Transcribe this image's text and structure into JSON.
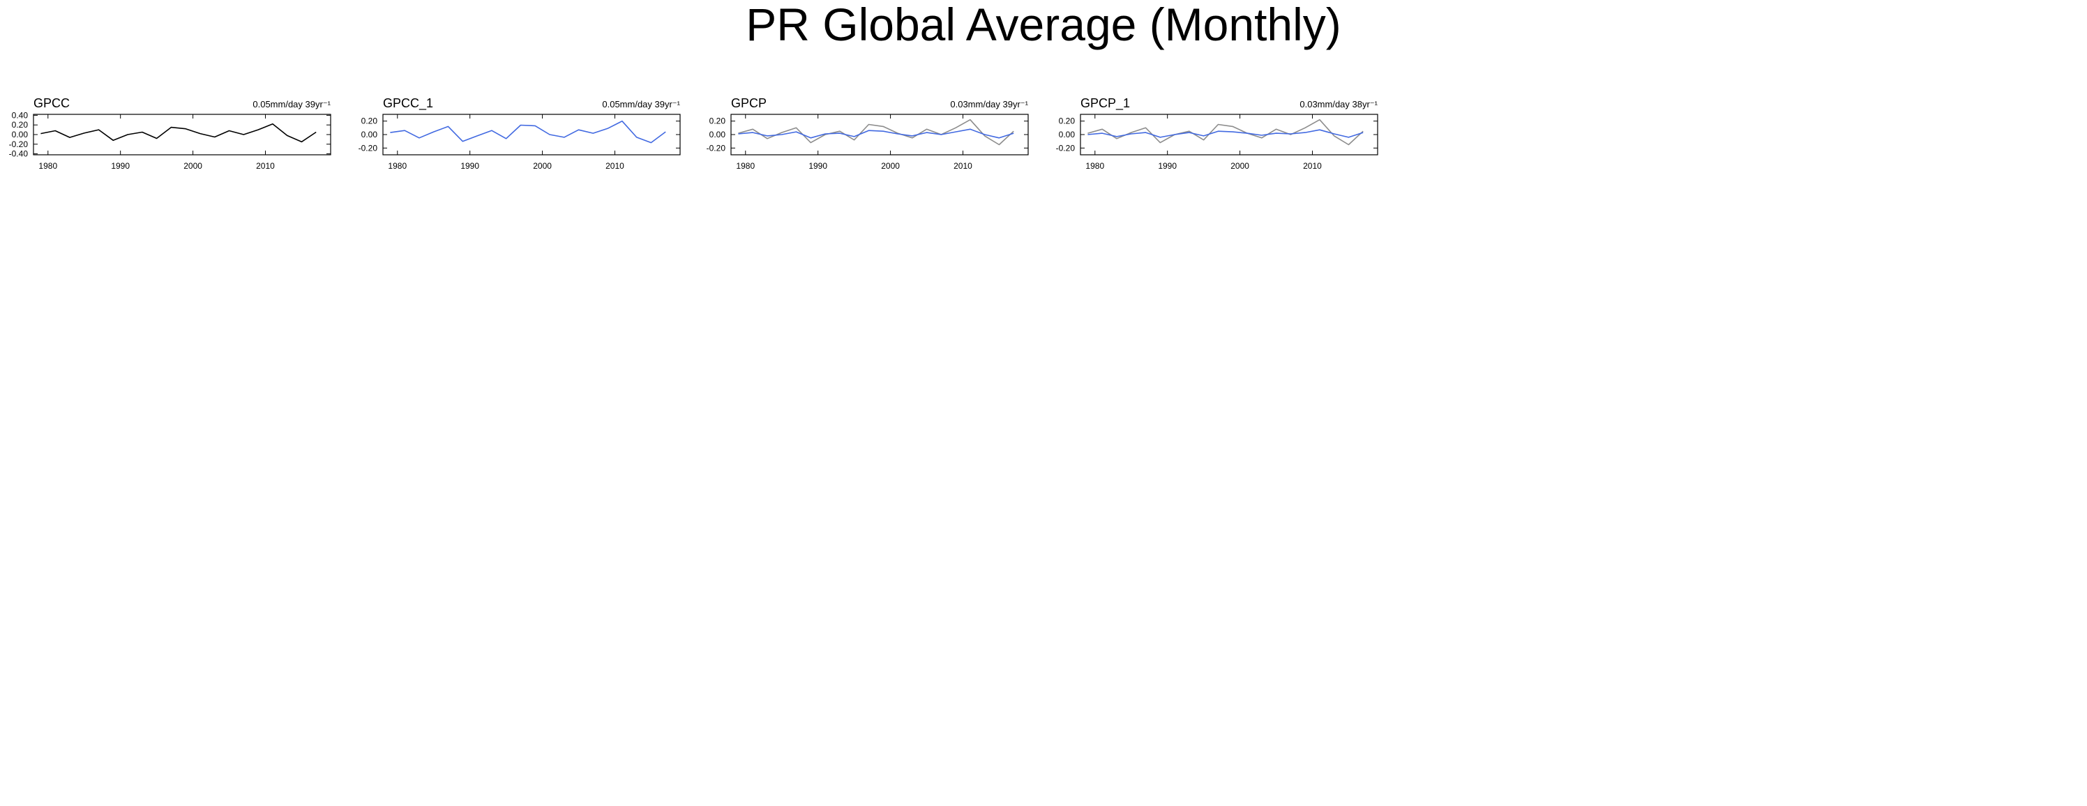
{
  "title": "PR Global Average (Monthly)",
  "chart_data": [
    {
      "type": "line",
      "title": "GPCC",
      "annotation": "0.05mm/day 39yr⁻¹",
      "x": [
        1979,
        1981,
        1983,
        1985,
        1987,
        1989,
        1991,
        1993,
        1995,
        1997,
        1999,
        2001,
        2003,
        2005,
        2007,
        2009,
        2011,
        2013,
        2015,
        2017
      ],
      "xlim": [
        1978,
        2019
      ],
      "xticks": [
        1980,
        1990,
        2000,
        2010
      ],
      "ylim": [
        -0.42,
        0.42
      ],
      "yticks": [
        {
          "value": 0.4,
          "label": "0.40"
        },
        {
          "value": 0.2,
          "label": "0.20"
        },
        {
          "value": 0,
          "label": "0.00"
        },
        {
          "value": -0.2,
          "label": "-0.20"
        },
        {
          "value": -0.4,
          "label": "-0.40"
        }
      ],
      "series": [
        {
          "color": "#000000",
          "values": [
            0.02,
            0.08,
            -0.06,
            0.03,
            0.1,
            -0.12,
            0.0,
            0.05,
            -0.08,
            0.15,
            0.12,
            0.02,
            -0.05,
            0.08,
            0.0,
            0.1,
            0.22,
            -0.02,
            -0.15,
            0.05
          ]
        }
      ]
    },
    {
      "type": "line",
      "title": "GPCC_1",
      "annotation": "0.05mm/day 39yr⁻¹",
      "x": [
        1979,
        1981,
        1983,
        1985,
        1987,
        1989,
        1991,
        1993,
        1995,
        1997,
        1999,
        2001,
        2003,
        2005,
        2007,
        2009,
        2011,
        2013,
        2015,
        2017
      ],
      "xlim": [
        1978,
        2019
      ],
      "xticks": [
        1980,
        1990,
        2000,
        2010
      ],
      "ylim": [
        -0.3,
        0.3
      ],
      "yticks": [
        {
          "value": 0.2,
          "label": "0.20"
        },
        {
          "value": 0,
          "label": "0.00"
        },
        {
          "value": -0.2,
          "label": "-0.20"
        }
      ],
      "series": [
        {
          "color": "#4169e1",
          "values": [
            0.03,
            0.06,
            -0.05,
            0.04,
            0.12,
            -0.1,
            -0.02,
            0.06,
            -0.06,
            0.14,
            0.13,
            0.0,
            -0.04,
            0.07,
            0.02,
            0.09,
            0.2,
            -0.04,
            -0.12,
            0.04
          ]
        }
      ]
    },
    {
      "type": "line",
      "title": "GPCP",
      "annotation": "0.03mm/day 39yr⁻¹",
      "x": [
        1979,
        1981,
        1983,
        1985,
        1987,
        1989,
        1991,
        1993,
        1995,
        1997,
        1999,
        2001,
        2003,
        2005,
        2007,
        2009,
        2011,
        2013,
        2015,
        2017
      ],
      "xlim": [
        1978,
        2019
      ],
      "xticks": [
        1980,
        1990,
        2000,
        2010
      ],
      "ylim": [
        -0.3,
        0.3
      ],
      "yticks": [
        {
          "value": 0.2,
          "label": "0.20"
        },
        {
          "value": 0,
          "label": "0.00"
        },
        {
          "value": -0.2,
          "label": "-0.20"
        }
      ],
      "series": [
        {
          "color": "#8c8c8c",
          "values": [
            0.02,
            0.08,
            -0.06,
            0.03,
            0.1,
            -0.12,
            0.0,
            0.05,
            -0.08,
            0.15,
            0.12,
            0.02,
            -0.05,
            0.08,
            0.0,
            0.1,
            0.22,
            -0.02,
            -0.15,
            0.05
          ]
        },
        {
          "color": "#4169e1",
          "values": [
            0.01,
            0.03,
            -0.02,
            0.0,
            0.04,
            -0.05,
            0.01,
            0.02,
            -0.03,
            0.06,
            0.05,
            0.01,
            -0.02,
            0.03,
            0.0,
            0.04,
            0.08,
            0.0,
            -0.05,
            0.02
          ]
        }
      ]
    },
    {
      "type": "line",
      "title": "GPCP_1",
      "annotation": "0.03mm/day 38yr⁻¹",
      "x": [
        1979,
        1981,
        1983,
        1985,
        1987,
        1989,
        1991,
        1993,
        1995,
        1997,
        1999,
        2001,
        2003,
        2005,
        2007,
        2009,
        2011,
        2013,
        2015,
        2017
      ],
      "xlim": [
        1978,
        2019
      ],
      "xticks": [
        1980,
        1990,
        2000,
        2010
      ],
      "ylim": [
        -0.3,
        0.3
      ],
      "yticks": [
        {
          "value": 0.2,
          "label": "0.20"
        },
        {
          "value": 0,
          "label": "0.00"
        },
        {
          "value": -0.2,
          "label": "-0.20"
        }
      ],
      "series": [
        {
          "color": "#8c8c8c",
          "values": [
            0.02,
            0.08,
            -0.06,
            0.03,
            0.1,
            -0.12,
            0.0,
            0.05,
            -0.08,
            0.15,
            0.12,
            0.02,
            -0.05,
            0.08,
            0.0,
            0.1,
            0.22,
            -0.02,
            -0.15,
            0.05
          ]
        },
        {
          "color": "#4169e1",
          "values": [
            0.0,
            0.02,
            -0.03,
            0.01,
            0.03,
            -0.04,
            0.0,
            0.03,
            -0.02,
            0.05,
            0.04,
            0.02,
            -0.01,
            0.02,
            0.01,
            0.03,
            0.07,
            0.01,
            -0.04,
            0.03
          ]
        }
      ]
    }
  ]
}
